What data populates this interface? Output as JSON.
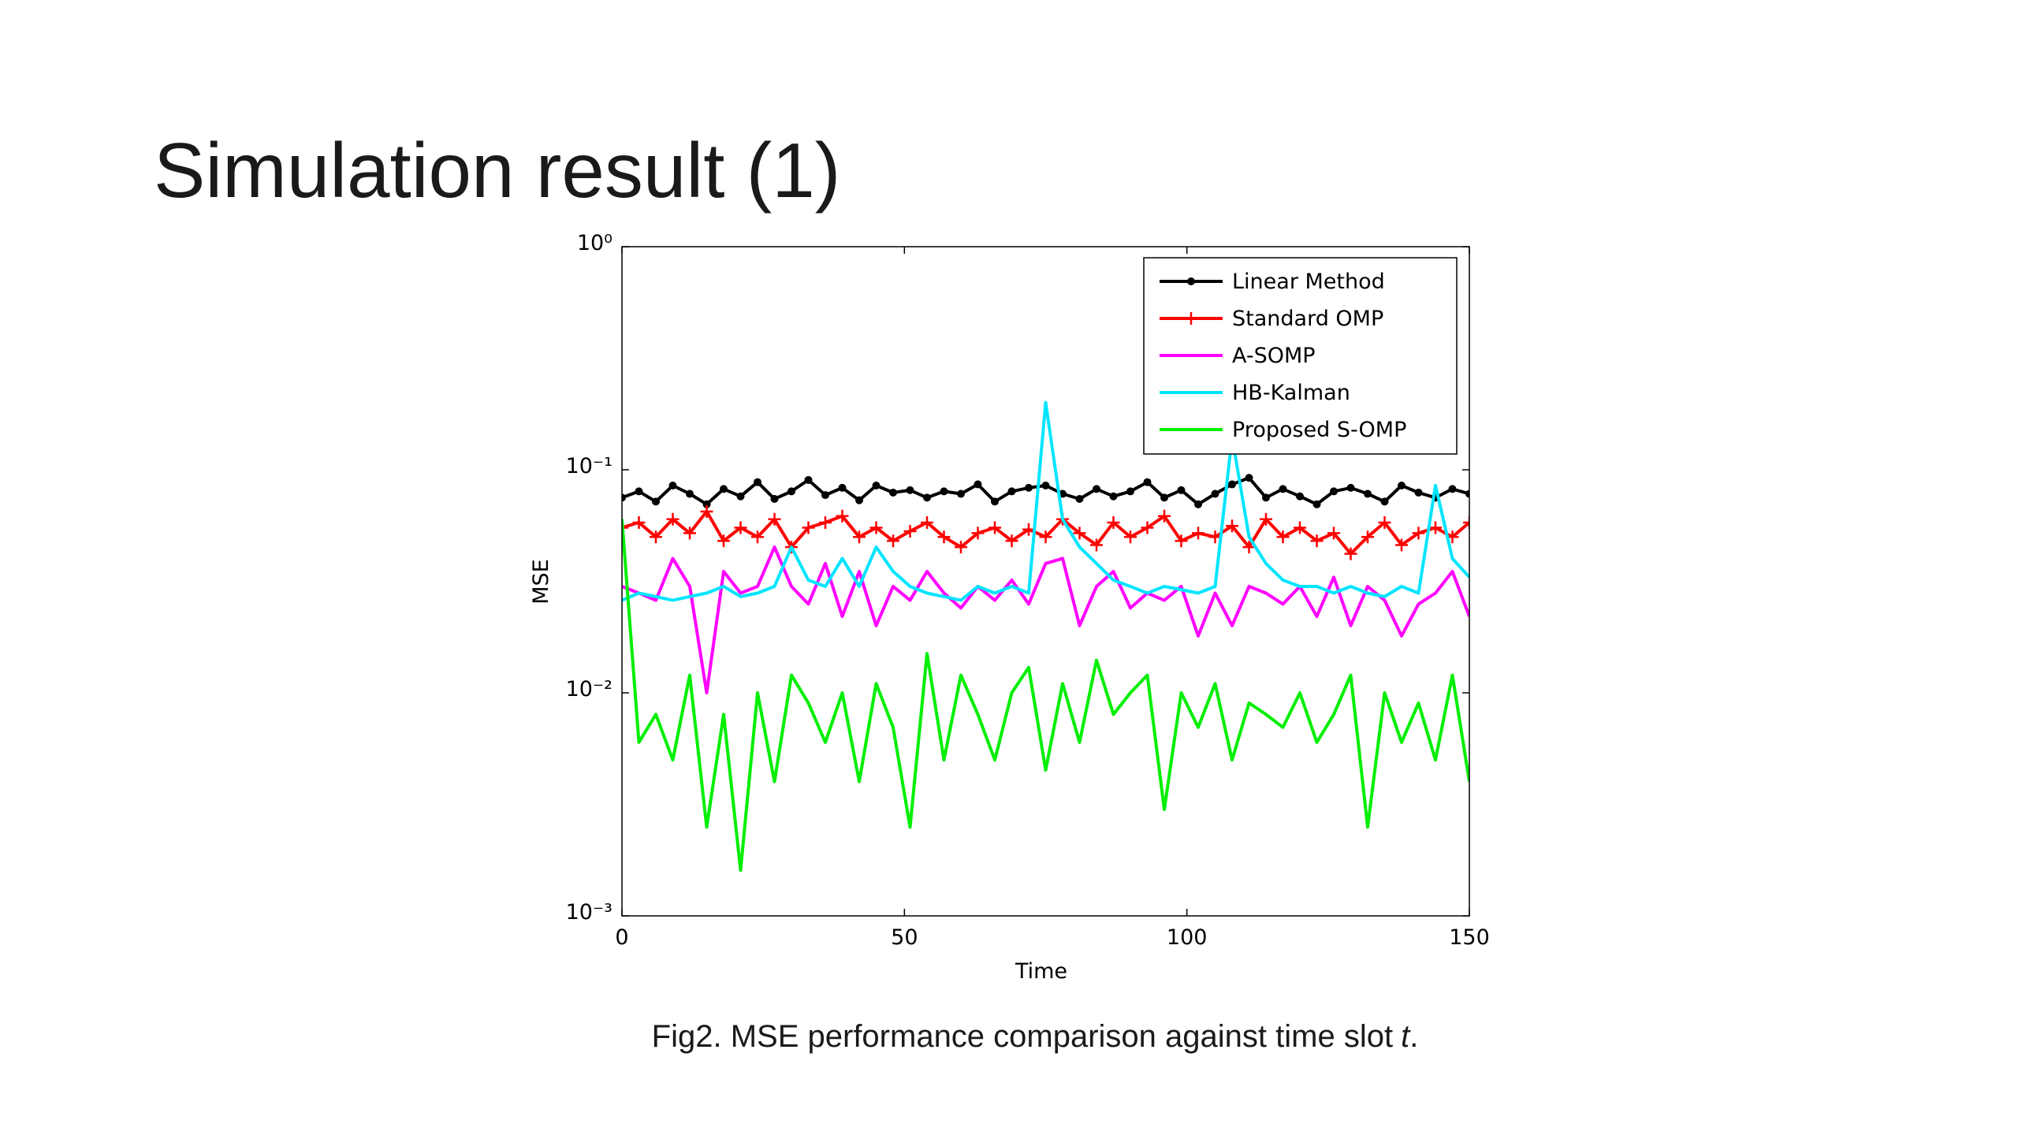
{
  "slide": {
    "title": "Simulation result (1)",
    "caption": {
      "text": "Fig2. MSE performance comparison against time slot",
      "variable": "t",
      "end": "."
    }
  },
  "chart_data": {
    "type": "line",
    "xlabel": "Time",
    "ylabel": "MSE",
    "yscale": "log",
    "legend": "upper right",
    "xlim": [
      0,
      150
    ],
    "xticks": [
      0,
      50,
      100,
      150
    ],
    "ylim": [
      0.001,
      1
    ],
    "yticks": [
      {
        "value": 0.001,
        "label": "10⁻³"
      },
      {
        "value": 0.01,
        "label": "10⁻²"
      },
      {
        "value": 0.1,
        "label": "10⁻¹"
      },
      {
        "value": 1,
        "label": "10⁰"
      }
    ],
    "x": [
      0,
      3,
      6,
      9,
      12,
      15,
      18,
      21,
      24,
      27,
      30,
      33,
      36,
      39,
      42,
      45,
      48,
      51,
      54,
      57,
      60,
      63,
      66,
      69,
      72,
      75,
      78,
      81,
      84,
      87,
      90,
      93,
      96,
      99,
      102,
      105,
      108,
      111,
      114,
      117,
      120,
      123,
      126,
      129,
      132,
      135,
      138,
      141,
      144,
      147,
      150
    ],
    "series": [
      {
        "name": "Linear Method",
        "color": "#000000",
        "marker": "o",
        "values": [
          0.075,
          0.08,
          0.072,
          0.085,
          0.078,
          0.07,
          0.082,
          0.076,
          0.088,
          0.074,
          0.08,
          0.09,
          0.077,
          0.083,
          0.073,
          0.085,
          0.079,
          0.081,
          0.075,
          0.08,
          0.078,
          0.086,
          0.072,
          0.08,
          0.083,
          0.085,
          0.078,
          0.074,
          0.082,
          0.076,
          0.08,
          0.088,
          0.075,
          0.081,
          0.07,
          0.078,
          0.086,
          0.092,
          0.075,
          0.082,
          0.076,
          0.07,
          0.08,
          0.083,
          0.078,
          0.072,
          0.085,
          0.079,
          0.075,
          0.082,
          0.078
        ]
      },
      {
        "name": "Standard OMP",
        "color": "#ff0000",
        "marker": "+",
        "values": [
          0.055,
          0.058,
          0.05,
          0.06,
          0.052,
          0.065,
          0.048,
          0.055,
          0.05,
          0.06,
          0.045,
          0.055,
          0.058,
          0.062,
          0.05,
          0.055,
          0.048,
          0.053,
          0.058,
          0.05,
          0.045,
          0.052,
          0.055,
          0.048,
          0.054,
          0.05,
          0.06,
          0.052,
          0.046,
          0.058,
          0.05,
          0.055,
          0.062,
          0.048,
          0.052,
          0.05,
          0.056,
          0.045,
          0.06,
          0.05,
          0.055,
          0.048,
          0.052,
          0.042,
          0.05,
          0.058,
          0.046,
          0.052,
          0.055,
          0.05,
          0.058
        ]
      },
      {
        "name": "A-SOMP",
        "color": "#ff00ff",
        "values": [
          0.03,
          0.028,
          0.026,
          0.04,
          0.03,
          0.01,
          0.035,
          0.028,
          0.03,
          0.045,
          0.03,
          0.025,
          0.038,
          0.022,
          0.035,
          0.02,
          0.03,
          0.026,
          0.035,
          0.028,
          0.024,
          0.03,
          0.026,
          0.032,
          0.025,
          0.038,
          0.04,
          0.02,
          0.03,
          0.035,
          0.024,
          0.028,
          0.026,
          0.03,
          0.018,
          0.028,
          0.02,
          0.03,
          0.028,
          0.025,
          0.03,
          0.022,
          0.033,
          0.02,
          0.03,
          0.026,
          0.018,
          0.025,
          0.028,
          0.035,
          0.022
        ]
      },
      {
        "name": "HB-Kalman",
        "color": "#00e5ff",
        "values": [
          0.026,
          0.028,
          0.027,
          0.026,
          0.027,
          0.028,
          0.03,
          0.027,
          0.028,
          0.03,
          0.045,
          0.032,
          0.03,
          0.04,
          0.03,
          0.045,
          0.035,
          0.03,
          0.028,
          0.027,
          0.026,
          0.03,
          0.028,
          0.03,
          0.028,
          0.2,
          0.06,
          0.045,
          0.038,
          0.032,
          0.03,
          0.028,
          0.03,
          0.029,
          0.028,
          0.03,
          0.14,
          0.05,
          0.038,
          0.032,
          0.03,
          0.03,
          0.028,
          0.03,
          0.028,
          0.027,
          0.03,
          0.028,
          0.085,
          0.04,
          0.033
        ]
      },
      {
        "name": "Proposed S-OMP",
        "color": "#00ee00",
        "values": [
          0.06,
          0.006,
          0.008,
          0.005,
          0.012,
          0.0025,
          0.008,
          0.0016,
          0.01,
          0.004,
          0.012,
          0.009,
          0.006,
          0.01,
          0.004,
          0.011,
          0.007,
          0.0025,
          0.015,
          0.005,
          0.012,
          0.008,
          0.005,
          0.01,
          0.013,
          0.0045,
          0.011,
          0.006,
          0.014,
          0.008,
          0.01,
          0.012,
          0.003,
          0.01,
          0.007,
          0.011,
          0.005,
          0.009,
          0.008,
          0.007,
          0.01,
          0.006,
          0.008,
          0.012,
          0.0025,
          0.01,
          0.006,
          0.009,
          0.005,
          0.012,
          0.004
        ]
      }
    ]
  }
}
